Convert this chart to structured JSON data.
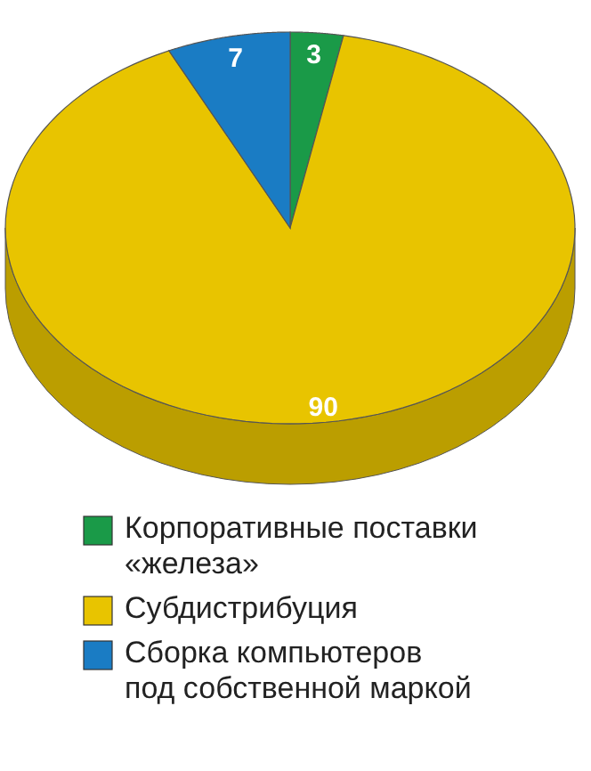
{
  "chart_data": {
    "type": "pie",
    "categories": [
      "Корпоративные поставки\n«железа»",
      "Субдистрибуция",
      "Сборка компьютеров\nпод собственной маркой"
    ],
    "values": [
      3,
      90,
      7
    ],
    "colors": [
      "#1a9a48",
      "#e8c400",
      "#1a7cc4"
    ],
    "data_labels": true,
    "legend": "bottom"
  }
}
